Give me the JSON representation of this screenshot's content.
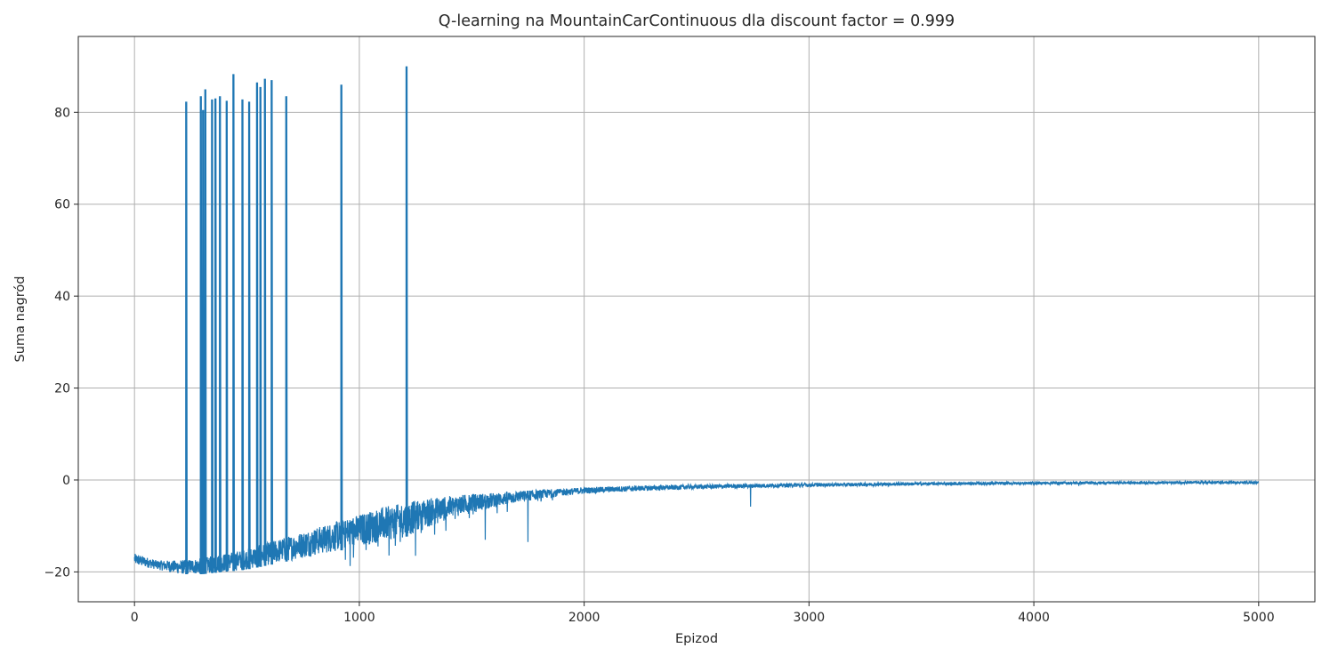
{
  "chart_data": {
    "type": "line",
    "title": "Q-learning na MountainCarContinuous dla discount factor = 0.999",
    "xlabel": "Epizod",
    "ylabel": "Suma nagród",
    "xlim": [
      -250,
      5250
    ],
    "ylim": [
      -26.5,
      96.5
    ],
    "xticks": [
      0,
      1000,
      2000,
      3000,
      4000,
      5000
    ],
    "xtick_labels": [
      "0",
      "1000",
      "2000",
      "3000",
      "4000",
      "5000"
    ],
    "yticks": [
      -20,
      0,
      20,
      40,
      60,
      80
    ],
    "ytick_labels": [
      "−20",
      "0",
      "20",
      "40",
      "60",
      "80"
    ],
    "grid": true,
    "color": "#1f77b4",
    "n_episodes": 5000,
    "trend_points": {
      "x": [
        0,
        100,
        200,
        300,
        400,
        500,
        600,
        700,
        800,
        900,
        1000,
        1100,
        1200,
        1300,
        1400,
        1500,
        1600,
        1700,
        1800,
        1900,
        2000,
        2200,
        2500,
        2800,
        3000,
        3500,
        4000,
        4500,
        5000
      ],
      "low": [
        -18.5,
        -19.5,
        -20.5,
        -20.5,
        -20,
        -19.5,
        -18.5,
        -17.5,
        -16.5,
        -15.5,
        -14.5,
        -13.5,
        -12.5,
        -10.5,
        -8.5,
        -7,
        -6,
        -5,
        -4.2,
        -3.5,
        -3,
        -2.5,
        -2,
        -1.7,
        -1.5,
        -1.2,
        -1,
        -0.9,
        -0.8
      ],
      "high": [
        -16,
        -17.5,
        -17.5,
        -17,
        -16,
        -15,
        -13.5,
        -12,
        -10.5,
        -9,
        -7.5,
        -6,
        -5,
        -4,
        -3.5,
        -3,
        -2.8,
        -2.4,
        -2.1,
        -1.9,
        -1.6,
        -1.3,
        -1,
        -0.8,
        -0.7,
        -0.5,
        -0.4,
        -0.3,
        -0.3
      ]
    },
    "spikes": [
      {
        "x": 230,
        "y": 82.3
      },
      {
        "x": 295,
        "y": 83.5
      },
      {
        "x": 305,
        "y": 80.5
      },
      {
        "x": 315,
        "y": 85.0
      },
      {
        "x": 345,
        "y": 82.8
      },
      {
        "x": 360,
        "y": 83.0
      },
      {
        "x": 380,
        "y": 83.5
      },
      {
        "x": 410,
        "y": 82.5
      },
      {
        "x": 440,
        "y": 88.3
      },
      {
        "x": 480,
        "y": 82.8
      },
      {
        "x": 510,
        "y": 82.3
      },
      {
        "x": 545,
        "y": 86.5
      },
      {
        "x": 560,
        "y": 85.5
      },
      {
        "x": 580,
        "y": 87.3
      },
      {
        "x": 610,
        "y": 87.0
      },
      {
        "x": 675,
        "y": 83.5
      },
      {
        "x": 920,
        "y": 86.0
      },
      {
        "x": 1210,
        "y": 90.0
      }
    ],
    "dips": [
      {
        "x": 1250,
        "y": -16.5
      },
      {
        "x": 1560,
        "y": -13
      },
      {
        "x": 1750,
        "y": -13.5
      },
      {
        "x": 2740,
        "y": -5.8
      },
      {
        "x": 4200,
        "y": -1.3
      }
    ]
  }
}
